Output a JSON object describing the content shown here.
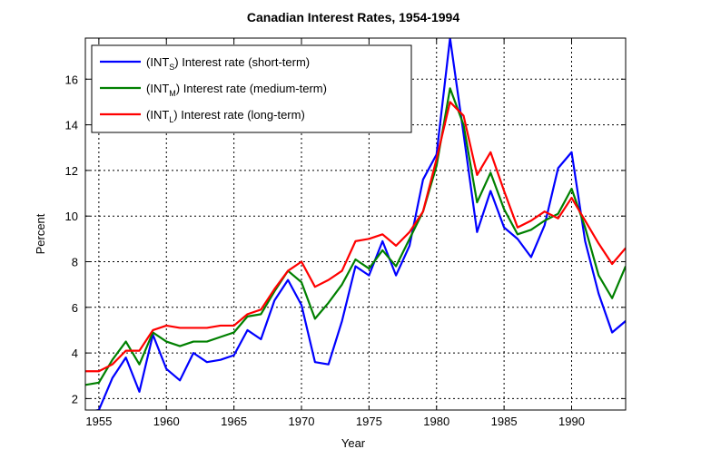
{
  "chart_data": {
    "type": "line",
    "title": "Canadian Interest Rates, 1954-1994",
    "xlabel": "Year",
    "ylabel": "Percent",
    "xlim": [
      1954,
      1994
    ],
    "ylim": [
      1.5,
      17.8
    ],
    "xticks": [
      1955,
      1960,
      1965,
      1970,
      1975,
      1980,
      1985,
      1990
    ],
    "yticks": [
      2,
      4,
      6,
      8,
      10,
      12,
      14,
      16
    ],
    "grid": true,
    "legend_position": "top-left",
    "x": [
      1954,
      1955,
      1956,
      1957,
      1958,
      1959,
      1960,
      1961,
      1962,
      1963,
      1964,
      1965,
      1966,
      1967,
      1968,
      1969,
      1970,
      1971,
      1972,
      1973,
      1974,
      1975,
      1976,
      1977,
      1978,
      1979,
      1980,
      1981,
      1982,
      1983,
      1984,
      1985,
      1986,
      1987,
      1988,
      1989,
      1990,
      1991,
      1992,
      1993,
      1994
    ],
    "series": [
      {
        "legend_prefix": "(INT",
        "legend_sub": "S",
        "legend_suffix": ") Interest rate (short-term)",
        "color": "#0000ff",
        "values": [
          1.4,
          1.5,
          2.9,
          3.8,
          2.3,
          4.8,
          3.3,
          2.8,
          4.0,
          3.6,
          3.7,
          3.9,
          5.0,
          4.6,
          6.3,
          7.2,
          6.1,
          3.6,
          3.5,
          5.4,
          7.8,
          7.4,
          8.9,
          7.4,
          8.7,
          11.6,
          12.7,
          17.8,
          13.6,
          9.3,
          11.1,
          9.5,
          9.0,
          8.2,
          9.6,
          12.1,
          12.8,
          8.9,
          6.6,
          4.9,
          5.4
        ]
      },
      {
        "legend_prefix": "(INT",
        "legend_sub": "M",
        "legend_suffix": ") Interest rate (medium-term)",
        "color": "#008000",
        "values": [
          2.6,
          2.7,
          3.7,
          4.5,
          3.5,
          4.9,
          4.5,
          4.3,
          4.5,
          4.5,
          4.7,
          4.9,
          5.6,
          5.7,
          6.7,
          7.6,
          7.1,
          5.5,
          6.2,
          7.0,
          8.1,
          7.7,
          8.5,
          7.8,
          9.0,
          10.2,
          12.2,
          15.6,
          14.0,
          10.6,
          11.9,
          10.3,
          9.2,
          9.4,
          9.8,
          10.1,
          11.2,
          9.5,
          7.4,
          6.4,
          7.8
        ]
      },
      {
        "legend_prefix": "(INT",
        "legend_sub": "L",
        "legend_suffix": ") Interest rate (long-term)",
        "color": "#ff0000",
        "values": [
          3.2,
          3.2,
          3.5,
          4.1,
          4.1,
          5.0,
          5.2,
          5.1,
          5.1,
          5.1,
          5.2,
          5.2,
          5.7,
          5.9,
          6.8,
          7.6,
          8.0,
          6.9,
          7.2,
          7.6,
          8.9,
          9.0,
          9.2,
          8.7,
          9.3,
          10.2,
          12.5,
          15.0,
          14.4,
          11.8,
          12.8,
          11.1,
          9.5,
          9.8,
          10.2,
          9.9,
          10.8,
          9.8,
          8.8,
          7.9,
          8.6
        ]
      }
    ]
  }
}
